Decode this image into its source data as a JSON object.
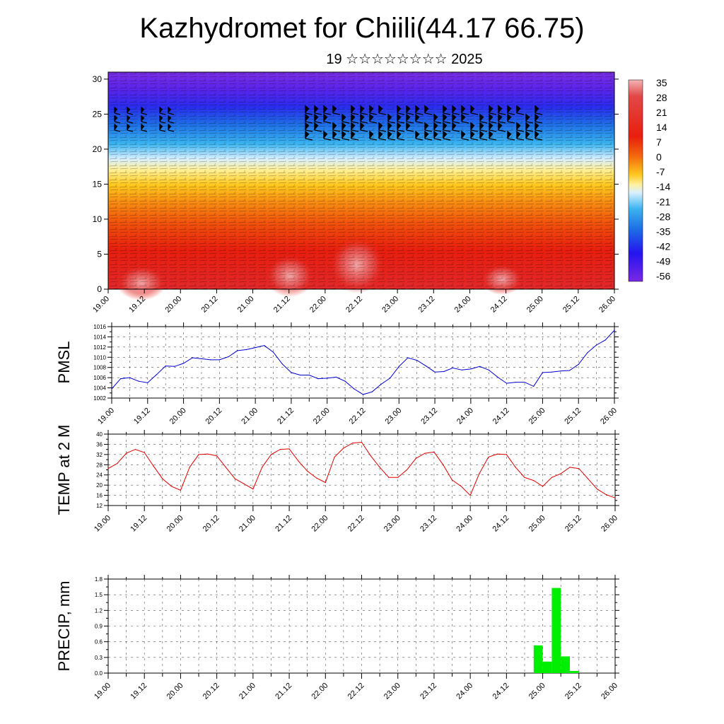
{
  "header": {
    "title": "Kazhydromet for Chiili(44.17 66.75)",
    "subtitle": "19 ☆☆☆☆☆☆☆☆ 2025"
  },
  "colors": {
    "pmsl_line": "#0000cc",
    "temp_line": "#dd0000",
    "precip_bar": "#00ee00"
  },
  "chart_data": [
    {
      "type": "heatmap",
      "title": "",
      "x_ticks": [
        "19.00",
        "19.12",
        "20.00",
        "20.12",
        "21.00",
        "21.12",
        "22.00",
        "22.12",
        "23.00",
        "23.12",
        "24.00",
        "24.12",
        "25.00",
        "25.12",
        "26.00"
      ],
      "y_ticks": [
        "0",
        "5",
        "10",
        "15",
        "20",
        "25",
        "30"
      ],
      "ylim": [
        0,
        31
      ],
      "colorbar": {
        "labels": [
          "35",
          "28",
          "21",
          "14",
          "7",
          "0",
          "-7",
          "-14",
          "-21",
          "-28",
          "-35",
          "-42",
          "-49",
          "-56"
        ],
        "range": [
          -63,
          42
        ]
      }
    },
    {
      "type": "line",
      "ylabel": "PMSL",
      "x_ticks": [
        "19.00",
        "19.12",
        "20.00",
        "20.12",
        "21.00",
        "21.12",
        "22.00",
        "22.12",
        "23.00",
        "23.12",
        "24.00",
        "24.12",
        "25.00",
        "25.12",
        "26.00"
      ],
      "y_ticks": [
        "1002",
        "1004",
        "1006",
        "1008",
        "1010",
        "1012",
        "1014",
        "1016"
      ],
      "ylim": [
        1002,
        1016
      ],
      "grid": true,
      "x": [
        0,
        0.125,
        0.25,
        0.375,
        0.5,
        0.625,
        0.75,
        0.875,
        1,
        1.125,
        1.25,
        1.375,
        1.5,
        1.625,
        1.75,
        1.875,
        2,
        2.125,
        2.25,
        2.375,
        2.5,
        2.625,
        2.75,
        2.875,
        3,
        3.125,
        3.25,
        3.375,
        3.5,
        3.625,
        3.75,
        3.875,
        4,
        4.125,
        4.25,
        4.375,
        4.5,
        4.625,
        4.75,
        4.875,
        5,
        5.125,
        5.25,
        5.375,
        5.5,
        5.625,
        5.75,
        5.875,
        6,
        6.125,
        6.25,
        6.375,
        6.5,
        6.625,
        6.75,
        6.875,
        7
      ],
      "values": [
        1003.8,
        1005.8,
        1006.0,
        1005.3,
        1005.0,
        1006.6,
        1008.3,
        1008.2,
        1008.8,
        1009.9,
        1009.7,
        1009.5,
        1009.5,
        1010.1,
        1011.3,
        1011.5,
        1011.9,
        1012.3,
        1011.0,
        1008.7,
        1007.0,
        1006.5,
        1006.5,
        1005.8,
        1005.9,
        1006.1,
        1005.3,
        1003.8,
        1002.7,
        1003.2,
        1004.7,
        1005.9,
        1008.2,
        1009.9,
        1009.4,
        1008.3,
        1007.1,
        1007.2,
        1007.9,
        1007.5,
        1007.7,
        1008.2,
        1007.5,
        1006.1,
        1004.9,
        1005.1,
        1005.1,
        1004.3,
        1007.0,
        1007.1,
        1007.3,
        1007.4,
        1008.6,
        1010.9,
        1012.4,
        1013.4,
        1015.3
      ]
    },
    {
      "type": "line",
      "ylabel": "TEMP at 2 M",
      "x_ticks": [
        "19.00",
        "19.12",
        "20.00",
        "20.12",
        "21.00",
        "21.12",
        "22.00",
        "22.12",
        "23.00",
        "23.12",
        "24.00",
        "24.12",
        "25.00",
        "25.12",
        "26.00"
      ],
      "y_ticks": [
        "12",
        "16",
        "20",
        "24",
        "28",
        "32",
        "36",
        "40"
      ],
      "ylim": [
        12,
        40
      ],
      "grid": true,
      "x": [
        0,
        0.125,
        0.25,
        0.375,
        0.5,
        0.625,
        0.75,
        0.875,
        1,
        1.125,
        1.25,
        1.375,
        1.5,
        1.625,
        1.75,
        1.875,
        2,
        2.125,
        2.25,
        2.375,
        2.5,
        2.625,
        2.75,
        2.875,
        3,
        3.125,
        3.25,
        3.375,
        3.5,
        3.625,
        3.75,
        3.875,
        4,
        4.125,
        4.25,
        4.375,
        4.5,
        4.625,
        4.75,
        4.875,
        5,
        5.125,
        5.25,
        5.375,
        5.5,
        5.625,
        5.75,
        5.875,
        6,
        6.125,
        6.25,
        6.375,
        6.5,
        6.625,
        6.75,
        6.875,
        7
      ],
      "values": [
        26.5,
        28.5,
        32.5,
        34.0,
        32.8,
        27.5,
        22.5,
        19.5,
        18.0,
        27.0,
        32.0,
        32.2,
        31.5,
        27.0,
        22.5,
        20.5,
        18.5,
        27.0,
        32.0,
        34.0,
        34.2,
        29.5,
        25.5,
        22.8,
        21.0,
        31.0,
        34.5,
        36.5,
        36.8,
        31.5,
        27.0,
        23.0,
        23.0,
        26.0,
        30.5,
        32.5,
        33.0,
        28.0,
        22.0,
        19.5,
        16.0,
        24.5,
        31.0,
        32.2,
        32.0,
        27.0,
        23.0,
        21.8,
        19.5,
        23.0,
        24.5,
        27.0,
        26.5,
        22.5,
        18.5,
        16.3,
        15.0
      ]
    },
    {
      "type": "bar",
      "ylabel": "PRECIP, mm",
      "x_ticks": [
        "19.00",
        "19.12",
        "20.00",
        "20.12",
        "21.00",
        "21.12",
        "22.00",
        "22.12",
        "23.00",
        "23.12",
        "24.00",
        "24.12",
        "25.00",
        "25.12",
        "26.00"
      ],
      "y_ticks": [
        "0.0",
        "0.3",
        "0.6",
        "0.9",
        "1.2",
        "1.5",
        "1.8"
      ],
      "ylim": [
        0,
        1.8
      ],
      "grid": true,
      "x": [
        5.875,
        6.0,
        6.125,
        6.25,
        6.375
      ],
      "values": [
        0.53,
        0.22,
        1.63,
        0.32,
        0.04
      ]
    }
  ]
}
